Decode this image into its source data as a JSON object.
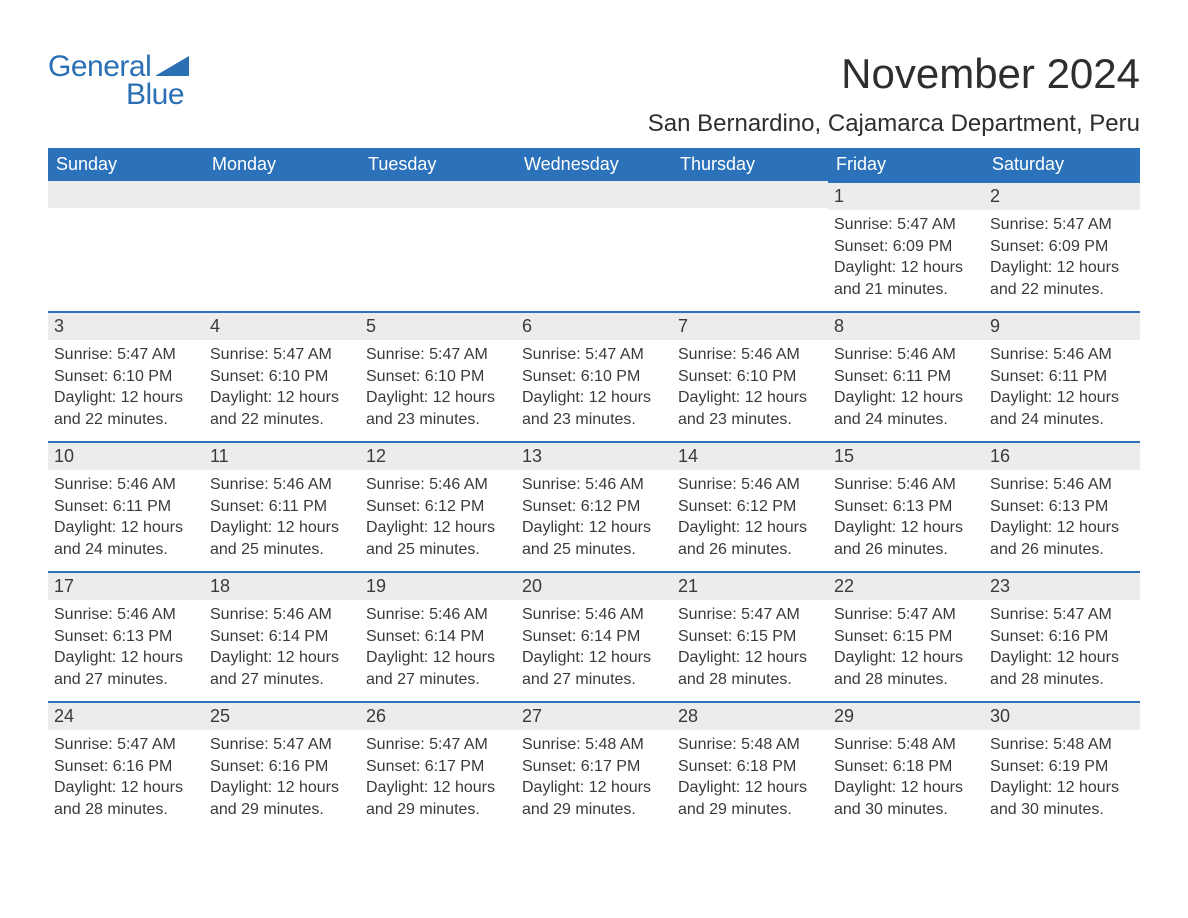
{
  "logo": {
    "general": "General",
    "blue": "Blue"
  },
  "title": "November 2024",
  "location": "San Bernardino, Cajamarca Department, Peru",
  "colors": {
    "header_bg": "#2b72ba",
    "header_text": "#ffffff",
    "day_num_bg": "#ececec",
    "day_border_top": "#2b72ba",
    "body_text": "#3a3a3a",
    "logo_color": "#2b6fb5",
    "page_bg": "#ffffff"
  },
  "typography": {
    "title_fontsize": 42,
    "location_fontsize": 24,
    "header_fontsize": 18,
    "daynum_fontsize": 18,
    "body_fontsize": 16,
    "logo_fontsize": 30
  },
  "weekdays": [
    "Sunday",
    "Monday",
    "Tuesday",
    "Wednesday",
    "Thursday",
    "Friday",
    "Saturday"
  ],
  "weeks": [
    [
      null,
      null,
      null,
      null,
      null,
      {
        "day": "1",
        "sunrise": "Sunrise: 5:47 AM",
        "sunset": "Sunset: 6:09 PM",
        "daylight": "Daylight: 12 hours and 21 minutes."
      },
      {
        "day": "2",
        "sunrise": "Sunrise: 5:47 AM",
        "sunset": "Sunset: 6:09 PM",
        "daylight": "Daylight: 12 hours and 22 minutes."
      }
    ],
    [
      {
        "day": "3",
        "sunrise": "Sunrise: 5:47 AM",
        "sunset": "Sunset: 6:10 PM",
        "daylight": "Daylight: 12 hours and 22 minutes."
      },
      {
        "day": "4",
        "sunrise": "Sunrise: 5:47 AM",
        "sunset": "Sunset: 6:10 PM",
        "daylight": "Daylight: 12 hours and 22 minutes."
      },
      {
        "day": "5",
        "sunrise": "Sunrise: 5:47 AM",
        "sunset": "Sunset: 6:10 PM",
        "daylight": "Daylight: 12 hours and 23 minutes."
      },
      {
        "day": "6",
        "sunrise": "Sunrise: 5:47 AM",
        "sunset": "Sunset: 6:10 PM",
        "daylight": "Daylight: 12 hours and 23 minutes."
      },
      {
        "day": "7",
        "sunrise": "Sunrise: 5:46 AM",
        "sunset": "Sunset: 6:10 PM",
        "daylight": "Daylight: 12 hours and 23 minutes."
      },
      {
        "day": "8",
        "sunrise": "Sunrise: 5:46 AM",
        "sunset": "Sunset: 6:11 PM",
        "daylight": "Daylight: 12 hours and 24 minutes."
      },
      {
        "day": "9",
        "sunrise": "Sunrise: 5:46 AM",
        "sunset": "Sunset: 6:11 PM",
        "daylight": "Daylight: 12 hours and 24 minutes."
      }
    ],
    [
      {
        "day": "10",
        "sunrise": "Sunrise: 5:46 AM",
        "sunset": "Sunset: 6:11 PM",
        "daylight": "Daylight: 12 hours and 24 minutes."
      },
      {
        "day": "11",
        "sunrise": "Sunrise: 5:46 AM",
        "sunset": "Sunset: 6:11 PM",
        "daylight": "Daylight: 12 hours and 25 minutes."
      },
      {
        "day": "12",
        "sunrise": "Sunrise: 5:46 AM",
        "sunset": "Sunset: 6:12 PM",
        "daylight": "Daylight: 12 hours and 25 minutes."
      },
      {
        "day": "13",
        "sunrise": "Sunrise: 5:46 AM",
        "sunset": "Sunset: 6:12 PM",
        "daylight": "Daylight: 12 hours and 25 minutes."
      },
      {
        "day": "14",
        "sunrise": "Sunrise: 5:46 AM",
        "sunset": "Sunset: 6:12 PM",
        "daylight": "Daylight: 12 hours and 26 minutes."
      },
      {
        "day": "15",
        "sunrise": "Sunrise: 5:46 AM",
        "sunset": "Sunset: 6:13 PM",
        "daylight": "Daylight: 12 hours and 26 minutes."
      },
      {
        "day": "16",
        "sunrise": "Sunrise: 5:46 AM",
        "sunset": "Sunset: 6:13 PM",
        "daylight": "Daylight: 12 hours and 26 minutes."
      }
    ],
    [
      {
        "day": "17",
        "sunrise": "Sunrise: 5:46 AM",
        "sunset": "Sunset: 6:13 PM",
        "daylight": "Daylight: 12 hours and 27 minutes."
      },
      {
        "day": "18",
        "sunrise": "Sunrise: 5:46 AM",
        "sunset": "Sunset: 6:14 PM",
        "daylight": "Daylight: 12 hours and 27 minutes."
      },
      {
        "day": "19",
        "sunrise": "Sunrise: 5:46 AM",
        "sunset": "Sunset: 6:14 PM",
        "daylight": "Daylight: 12 hours and 27 minutes."
      },
      {
        "day": "20",
        "sunrise": "Sunrise: 5:46 AM",
        "sunset": "Sunset: 6:14 PM",
        "daylight": "Daylight: 12 hours and 27 minutes."
      },
      {
        "day": "21",
        "sunrise": "Sunrise: 5:47 AM",
        "sunset": "Sunset: 6:15 PM",
        "daylight": "Daylight: 12 hours and 28 minutes."
      },
      {
        "day": "22",
        "sunrise": "Sunrise: 5:47 AM",
        "sunset": "Sunset: 6:15 PM",
        "daylight": "Daylight: 12 hours and 28 minutes."
      },
      {
        "day": "23",
        "sunrise": "Sunrise: 5:47 AM",
        "sunset": "Sunset: 6:16 PM",
        "daylight": "Daylight: 12 hours and 28 minutes."
      }
    ],
    [
      {
        "day": "24",
        "sunrise": "Sunrise: 5:47 AM",
        "sunset": "Sunset: 6:16 PM",
        "daylight": "Daylight: 12 hours and 28 minutes."
      },
      {
        "day": "25",
        "sunrise": "Sunrise: 5:47 AM",
        "sunset": "Sunset: 6:16 PM",
        "daylight": "Daylight: 12 hours and 29 minutes."
      },
      {
        "day": "26",
        "sunrise": "Sunrise: 5:47 AM",
        "sunset": "Sunset: 6:17 PM",
        "daylight": "Daylight: 12 hours and 29 minutes."
      },
      {
        "day": "27",
        "sunrise": "Sunrise: 5:48 AM",
        "sunset": "Sunset: 6:17 PM",
        "daylight": "Daylight: 12 hours and 29 minutes."
      },
      {
        "day": "28",
        "sunrise": "Sunrise: 5:48 AM",
        "sunset": "Sunset: 6:18 PM",
        "daylight": "Daylight: 12 hours and 29 minutes."
      },
      {
        "day": "29",
        "sunrise": "Sunrise: 5:48 AM",
        "sunset": "Sunset: 6:18 PM",
        "daylight": "Daylight: 12 hours and 30 minutes."
      },
      {
        "day": "30",
        "sunrise": "Sunrise: 5:48 AM",
        "sunset": "Sunset: 6:19 PM",
        "daylight": "Daylight: 12 hours and 30 minutes."
      }
    ]
  ]
}
